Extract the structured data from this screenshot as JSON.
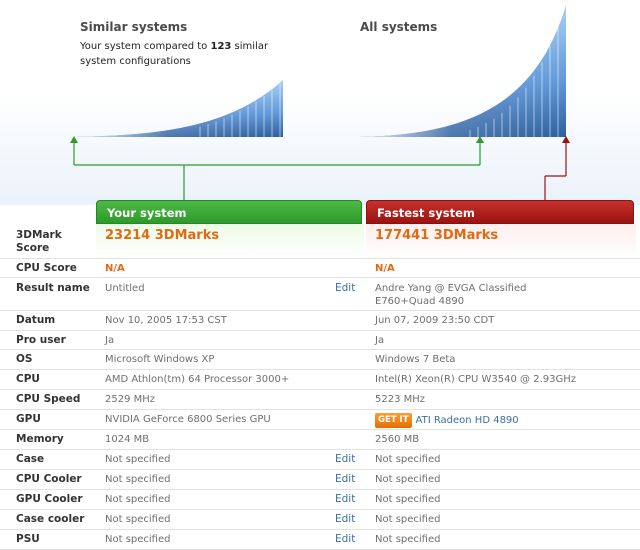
{
  "similar": {
    "title": "Similar systems",
    "desc_prefix": "Your system compared to ",
    "desc_count": "123",
    "desc_suffix": " similar system configurations"
  },
  "all": {
    "title": "All systems"
  },
  "columns": {
    "your": "Your system",
    "fastest": "Fastest system"
  },
  "rows": [
    {
      "label": "3DMark Score",
      "your": "23214 3DMarks",
      "fastest": "177441 3DMarks"
    },
    {
      "label": "CPU Score",
      "your": "N/A",
      "fastest": "N/A"
    },
    {
      "label": "Result name",
      "your": "Untitled",
      "fastest": "Andre Yang @ EVGA Classified E760+Quad 4890",
      "edit": "Edit"
    },
    {
      "label": "Datum",
      "your": "Nov 10, 2005 17:53 CST",
      "fastest": "Jun 07, 2009 23:50 CDT"
    },
    {
      "label": "Pro user",
      "your": "Ja",
      "fastest": "Ja"
    },
    {
      "label": "OS",
      "your": "Microsoft Windows XP",
      "fastest": "Windows 7 Beta"
    },
    {
      "label": "CPU",
      "your": "AMD Athlon(tm) 64 Processor 3000+",
      "fastest": "Intel(R) Xeon(R) CPU W3540 @ 2.93GHz"
    },
    {
      "label": "CPU Speed",
      "your": "2529 MHz",
      "fastest": "5223 MHz"
    },
    {
      "label": "GPU",
      "your": "NVIDIA GeForce 6800 Series GPU",
      "fastest": "ATI Radeon HD 4890",
      "badge": "GET IT"
    },
    {
      "label": "Memory",
      "your": "1024 MB",
      "fastest": "2560 MB"
    },
    {
      "label": "Case",
      "your": "Not specified",
      "fastest": "Not specified",
      "edit": "Edit"
    },
    {
      "label": "CPU Cooler",
      "your": "Not specified",
      "fastest": "Not specified",
      "edit": "Edit"
    },
    {
      "label": "GPU Cooler",
      "your": "Not specified",
      "fastest": "Not specified",
      "edit": "Edit"
    },
    {
      "label": "Case cooler",
      "your": "Not specified",
      "fastest": "Not specified",
      "edit": "Edit"
    },
    {
      "label": "PSU",
      "your": "Not specified",
      "fastest": "Not specified",
      "edit": "Edit"
    }
  ],
  "colors": {
    "green": "#2e9a2a",
    "red": "#9b1310",
    "score": "#e06a12",
    "link": "#3a6ea5"
  }
}
